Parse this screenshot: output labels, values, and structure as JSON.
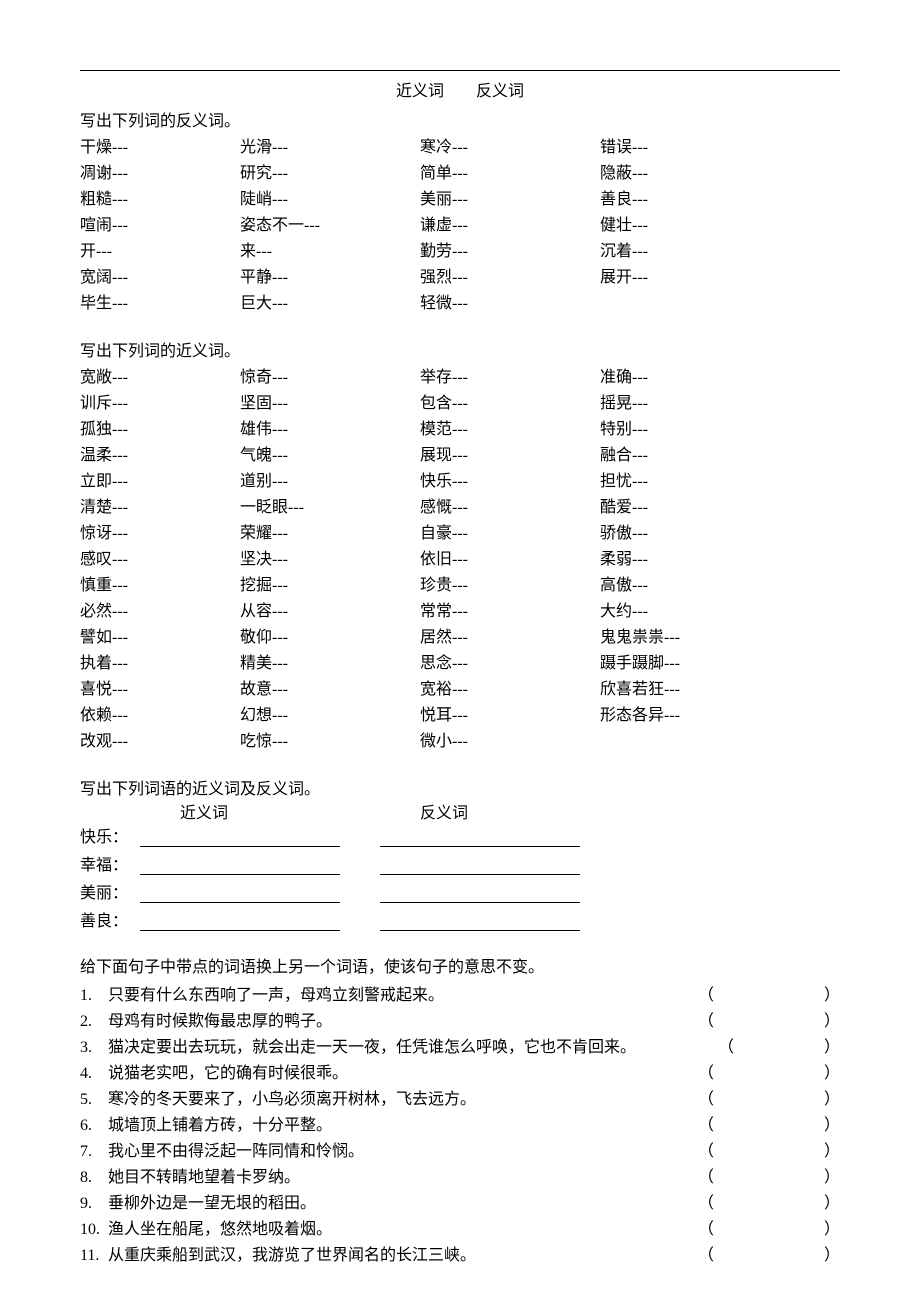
{
  "title": {
    "left": "近义词",
    "right": "反义词"
  },
  "antonym_section": {
    "heading": "写出下列词的反义词。",
    "rows": [
      [
        "干燥---",
        "光滑---",
        "寒冷---",
        "错误---"
      ],
      [
        "凋谢---",
        "研究---",
        "简单---",
        "隐蔽---"
      ],
      [
        "粗糙---",
        "陡峭---",
        "美丽---",
        "善良---"
      ],
      [
        "喧闹---",
        "姿态不一---",
        "谦虚---",
        "健壮---"
      ],
      [
        "开---",
        "来---",
        "勤劳---",
        "沉着---"
      ],
      [
        "宽阔---",
        "平静---",
        "强烈---",
        "展开---"
      ],
      [
        "毕生---",
        "巨大---",
        "轻微---",
        ""
      ]
    ]
  },
  "synonym_section": {
    "heading": "写出下列词的近义词。",
    "rows": [
      [
        "宽敞---",
        "惊奇---",
        "举存---",
        "准确---"
      ],
      [
        "训斥---",
        "坚固---",
        "包含---",
        "摇晃---"
      ],
      [
        "孤独---",
        "雄伟---",
        "模范---",
        "特别---"
      ],
      [
        "温柔---",
        "气魄---",
        "展现---",
        "融合---"
      ],
      [
        "立即---",
        "道别---",
        "快乐---",
        "担忧---"
      ],
      [
        "清楚---",
        "一眨眼---",
        "感慨---",
        "酷爱---"
      ],
      [
        "惊讶---",
        "荣耀---",
        "自豪---",
        "骄傲---"
      ],
      [
        "感叹---",
        "坚决---",
        "依旧---",
        "柔弱---"
      ],
      [
        "慎重---",
        "挖掘---",
        "珍贵---",
        "高傲---"
      ],
      [
        "必然---",
        "从容---",
        "常常---",
        "大约---"
      ],
      [
        "譬如---",
        "敬仰---",
        "居然---",
        "鬼鬼祟祟---"
      ],
      [
        "执着---",
        "精美---",
        "思念---",
        "蹑手蹑脚---"
      ],
      [
        "喜悦---",
        "故意---",
        "宽裕---",
        "欣喜若狂---"
      ],
      [
        "依赖---",
        "幻想---",
        "悦耳---",
        "形态各异---"
      ],
      [
        "改观---",
        "吃惊---",
        "微小---",
        ""
      ]
    ]
  },
  "both_section": {
    "heading": "写出下列词语的近义词及反义词。",
    "col1": "近义词",
    "col2": "反义词",
    "items": [
      "快乐：",
      "幸福：",
      "美丽：",
      "善良："
    ]
  },
  "sentence_section": {
    "heading": "给下面句子中带点的词语换上另一个词语，使该句子的意思不变。",
    "items": [
      {
        "n": "1.",
        "t": "只要有什么东西响了一声，母鸡立刻警戒起来。"
      },
      {
        "n": "2.",
        "t": "母鸡有时候欺侮最忠厚的鸭子。"
      },
      {
        "n": "3.",
        "t": "猫决定要出去玩玩，就会出走一天一夜，任凭谁怎么呼唤，它也不肯回来。",
        "wide": true
      },
      {
        "n": "4.",
        "t": "说猫老实吧，它的确有时候很乖。"
      },
      {
        "n": "5.",
        "t": "寒冷的冬天要来了，小鸟必须离开树林，飞去远方。"
      },
      {
        "n": "6.",
        "t": "城墙顶上铺着方砖，十分平整。"
      },
      {
        "n": "7.",
        "t": "我心里不由得泛起一阵同情和怜悯。"
      },
      {
        "n": "8.",
        "t": "她目不转睛地望着卡罗纳。"
      },
      {
        "n": "9.",
        "t": "垂柳外边是一望无垠的稻田。"
      },
      {
        "n": "10.",
        "t": "渔人坐在船尾，悠然地吸着烟。"
      },
      {
        "n": "11.",
        "t": "从重庆乘船到武汉，我游览了世界闻名的长江三峡。"
      }
    ]
  },
  "paren": {
    "open": "（",
    "close": "）"
  }
}
